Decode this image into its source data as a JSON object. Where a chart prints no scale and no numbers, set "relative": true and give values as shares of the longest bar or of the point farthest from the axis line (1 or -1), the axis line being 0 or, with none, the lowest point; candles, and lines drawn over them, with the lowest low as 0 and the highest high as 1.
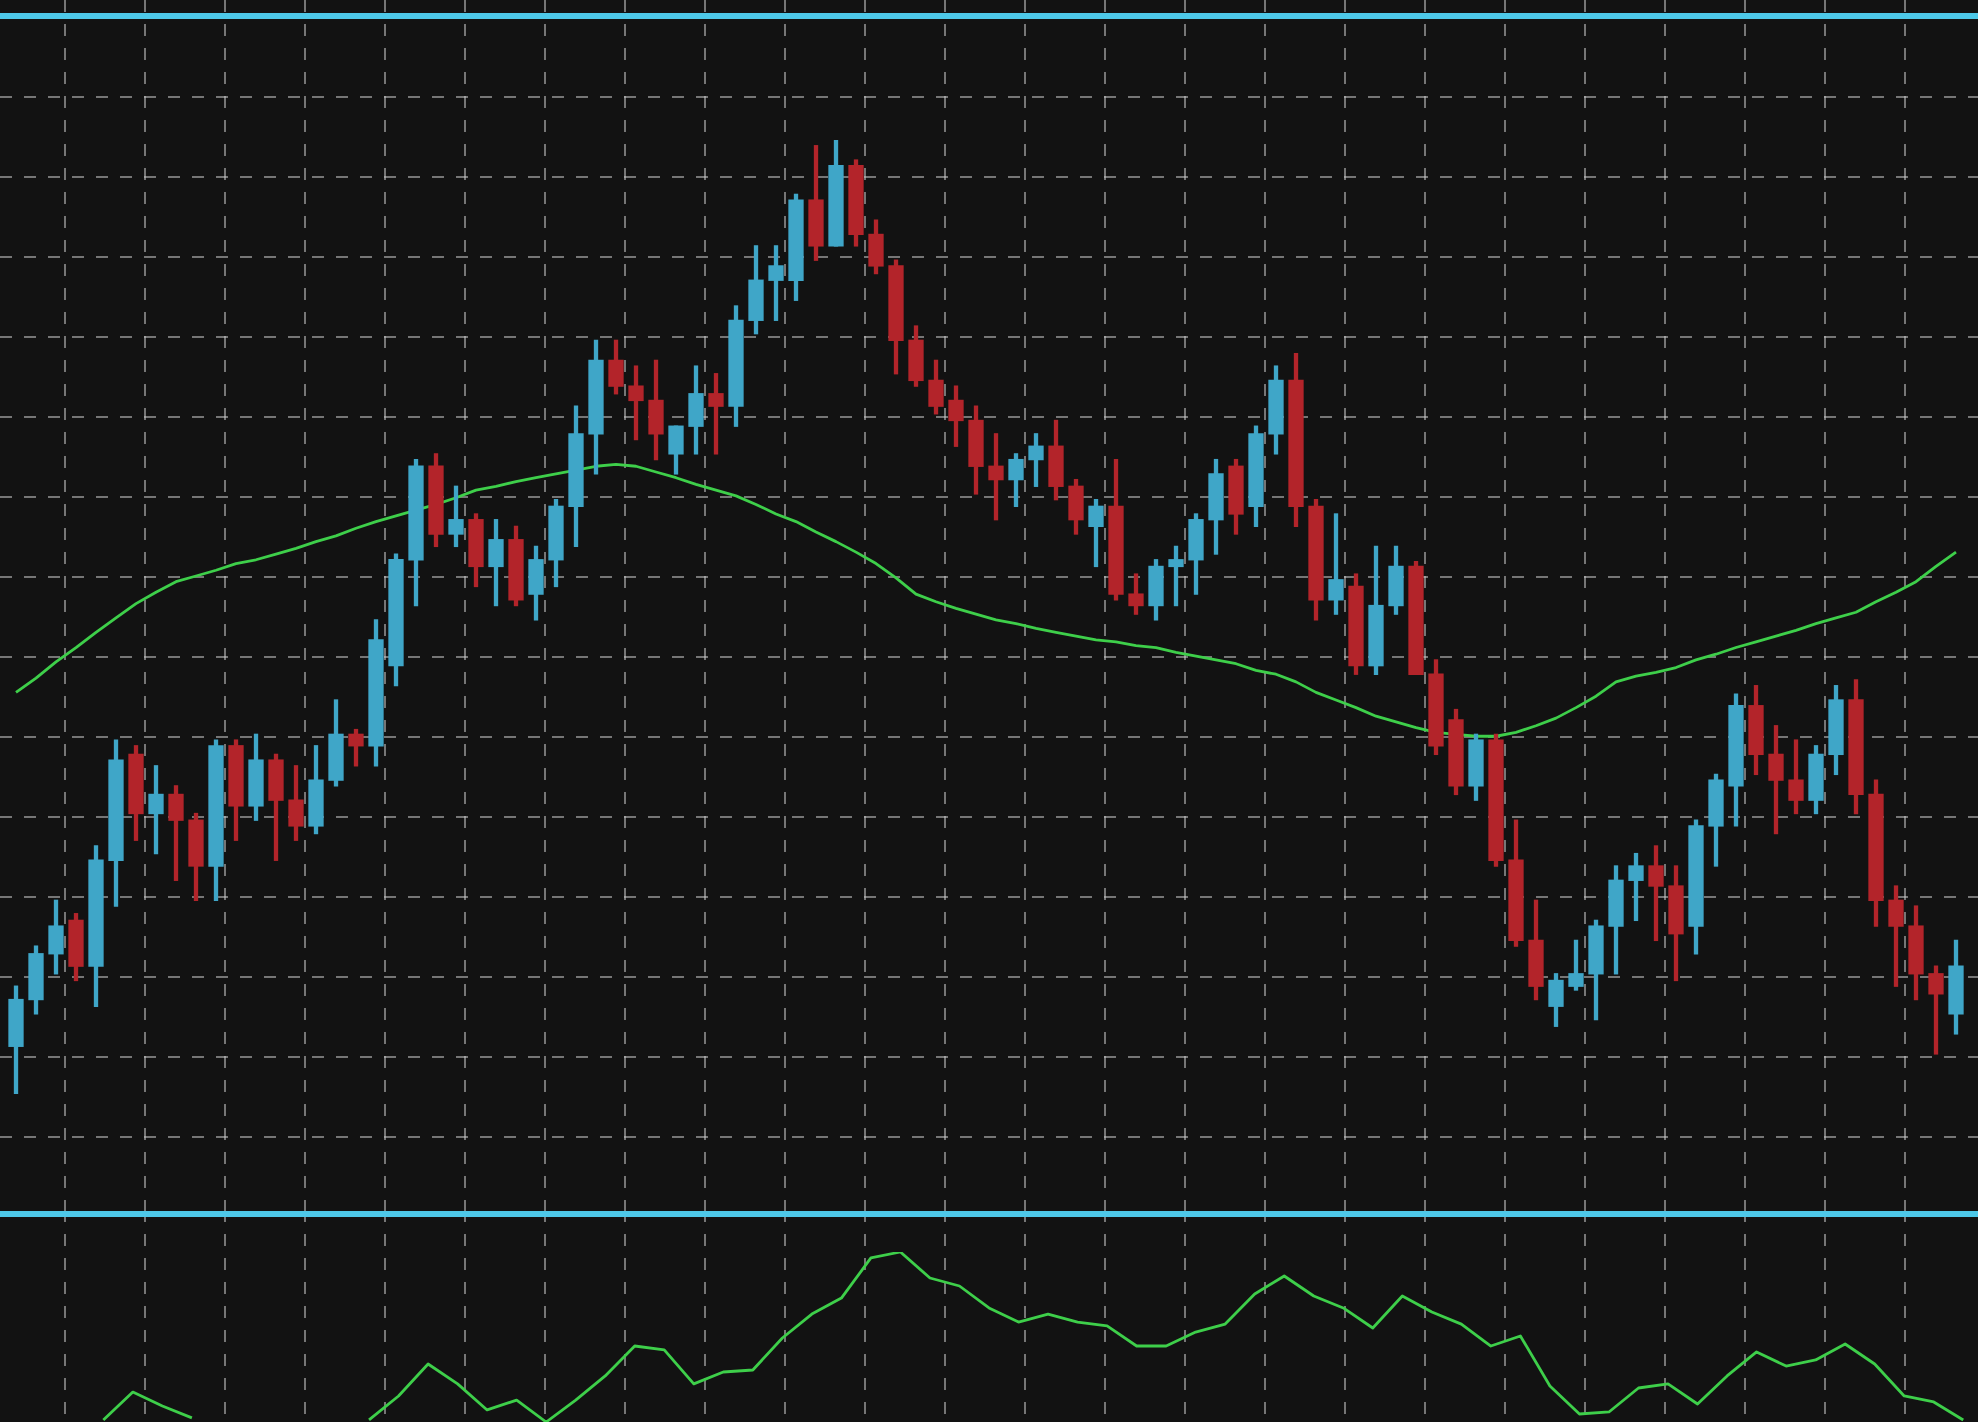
{
  "chart_data": [
    {
      "type": "candlestick",
      "relative": true,
      "grid": true,
      "categories": [
        null,
        null,
        null,
        null,
        null,
        null,
        null,
        null,
        null,
        null,
        null,
        null,
        null,
        null,
        null,
        null,
        null,
        null,
        null,
        null,
        null,
        null,
        null,
        null,
        null,
        null,
        null,
        null,
        null,
        null,
        null,
        null,
        null,
        null,
        null,
        null,
        null,
        null,
        null,
        null,
        null,
        null,
        null,
        null,
        null,
        null,
        null,
        null,
        null,
        null,
        null,
        null,
        null,
        null,
        null,
        null,
        null,
        null,
        null,
        null,
        null,
        null,
        null,
        null,
        null,
        null,
        null,
        null,
        null,
        null,
        null,
        null,
        null,
        null,
        null,
        null,
        null,
        null,
        null,
        null,
        null,
        null,
        null,
        null,
        null,
        null,
        null,
        null,
        null,
        null,
        null,
        null,
        null,
        null,
        null,
        null,
        null,
        null
      ],
      "ohlc": [
        [
          0.05,
          0.113,
          0,
          0.099
        ],
        [
          0.099,
          0.155,
          0.084,
          0.147
        ],
        [
          0.147,
          0.203,
          0.126,
          0.176
        ],
        [
          0.182,
          0.189,
          0.119,
          0.134
        ],
        [
          0.134,
          0.26,
          0.092,
          0.245
        ],
        [
          0.245,
          0.371,
          0.197,
          0.35
        ],
        [
          0.356,
          0.365,
          0.266,
          0.294
        ],
        [
          0.294,
          0.344,
          0.252,
          0.314
        ],
        [
          0.314,
          0.323,
          0.224,
          0.287
        ],
        [
          0.287,
          0.294,
          0.203,
          0.239
        ],
        [
          0.239,
          0.371,
          0.203,
          0.365
        ],
        [
          0.365,
          0.371,
          0.266,
          0.302
        ],
        [
          0.302,
          0.377,
          0.287,
          0.35
        ],
        [
          0.35,
          0.356,
          0.245,
          0.308
        ],
        [
          0.308,
          0.344,
          0.266,
          0.281
        ],
        [
          0.281,
          0.365,
          0.273,
          0.329
        ],
        [
          0.329,
          0.413,
          0.323,
          0.377
        ],
        [
          0.377,
          0.382,
          0.344,
          0.365
        ],
        [
          0.365,
          0.497,
          0.344,
          0.476
        ],
        [
          0.449,
          0.566,
          0.428,
          0.56
        ],
        [
          0.56,
          0.665,
          0.512,
          0.658
        ],
        [
          0.658,
          0.671,
          0.574,
          0.587
        ],
        [
          0.587,
          0.637,
          0.574,
          0.602
        ],
        [
          0.602,
          0.608,
          0.532,
          0.553
        ],
        [
          0.553,
          0.602,
          0.512,
          0.581
        ],
        [
          0.581,
          0.595,
          0.512,
          0.518
        ],
        [
          0.524,
          0.574,
          0.497,
          0.56
        ],
        [
          0.56,
          0.623,
          0.532,
          0.616
        ],
        [
          0.616,
          0.721,
          0.574,
          0.692
        ],
        [
          0.692,
          0.79,
          0.65,
          0.769
        ],
        [
          0.769,
          0.79,
          0.734,
          0.742
        ],
        [
          0.742,
          0.763,
          0.686,
          0.727
        ],
        [
          0.727,
          0.769,
          0.665,
          0.692
        ],
        [
          0.671,
          0.7,
          0.65,
          0.7
        ],
        [
          0.7,
          0.763,
          0.671,
          0.734
        ],
        [
          0.734,
          0.755,
          0.671,
          0.721
        ],
        [
          0.721,
          0.826,
          0.7,
          0.811
        ],
        [
          0.811,
          0.889,
          0.797,
          0.853
        ],
        [
          0.853,
          0.889,
          0.811,
          0.868
        ],
        [
          0.853,
          0.943,
          0.832,
          0.937
        ],
        [
          0.937,
          0.994,
          0.874,
          0.889
        ],
        [
          0.889,
          1,
          0.889,
          0.973
        ],
        [
          0.973,
          0.979,
          0.889,
          0.901
        ],
        [
          0.901,
          0.916,
          0.86,
          0.868
        ],
        [
          0.868,
          0.874,
          0.755,
          0.79
        ],
        [
          0.79,
          0.805,
          0.742,
          0.748
        ],
        [
          0.748,
          0.769,
          0.713,
          0.721
        ],
        [
          0.727,
          0.742,
          0.679,
          0.706
        ],
        [
          0.706,
          0.721,
          0.629,
          0.658
        ],
        [
          0.658,
          0.692,
          0.602,
          0.644
        ],
        [
          0.644,
          0.671,
          0.616,
          0.665
        ],
        [
          0.665,
          0.692,
          0.637,
          0.679
        ],
        [
          0.679,
          0.706,
          0.623,
          0.637
        ],
        [
          0.637,
          0.644,
          0.587,
          0.602
        ],
        [
          0.595,
          0.623,
          0.553,
          0.616
        ],
        [
          0.616,
          0.665,
          0.518,
          0.524
        ],
        [
          0.524,
          0.545,
          0.503,
          0.512
        ],
        [
          0.512,
          0.56,
          0.497,
          0.553
        ],
        [
          0.553,
          0.574,
          0.512,
          0.56
        ],
        [
          0.56,
          0.608,
          0.524,
          0.602
        ],
        [
          0.602,
          0.665,
          0.566,
          0.65
        ],
        [
          0.658,
          0.665,
          0.587,
          0.608
        ],
        [
          0.616,
          0.7,
          0.595,
          0.692
        ],
        [
          0.692,
          0.763,
          0.671,
          0.748
        ],
        [
          0.748,
          0.776,
          0.595,
          0.616
        ],
        [
          0.616,
          0.623,
          0.497,
          0.518
        ],
        [
          0.518,
          0.608,
          0.503,
          0.539
        ],
        [
          0.532,
          0.545,
          0.44,
          0.449
        ],
        [
          0.449,
          0.574,
          0.44,
          0.512
        ],
        [
          0.512,
          0.574,
          0.503,
          0.553
        ],
        [
          0.553,
          0.558,
          0.44,
          0.44
        ],
        [
          0.44,
          0.455,
          0.356,
          0.365
        ],
        [
          0.392,
          0.403,
          0.314,
          0.323
        ],
        [
          0.323,
          0.377,
          0.308,
          0.371
        ],
        [
          0.371,
          0.377,
          0.239,
          0.245
        ],
        [
          0.245,
          0.287,
          0.155,
          0.161
        ],
        [
          0.161,
          0.203,
          0.099,
          0.113
        ],
        [
          0.092,
          0.126,
          0.071,
          0.119
        ],
        [
          0.113,
          0.161,
          0.109,
          0.126
        ],
        [
          0.126,
          0.182,
          0.078,
          0.176
        ],
        [
          0.176,
          0.239,
          0.126,
          0.224
        ],
        [
          0.224,
          0.252,
          0.182,
          0.239
        ],
        [
          0.239,
          0.26,
          0.161,
          0.218
        ],
        [
          0.218,
          0.239,
          0.119,
          0.168
        ],
        [
          0.176,
          0.287,
          0.147,
          0.281
        ],
        [
          0.281,
          0.335,
          0.239,
          0.329
        ],
        [
          0.323,
          0.419,
          0.281,
          0.407
        ],
        [
          0.407,
          0.428,
          0.335,
          0.356
        ],
        [
          0.356,
          0.386,
          0.273,
          0.329
        ],
        [
          0.329,
          0.371,
          0.294,
          0.308
        ],
        [
          0.308,
          0.365,
          0.294,
          0.356
        ],
        [
          0.356,
          0.428,
          0.335,
          0.413
        ],
        [
          0.413,
          0.434,
          0.294,
          0.314
        ],
        [
          0.314,
          0.329,
          0.176,
          0.203
        ],
        [
          0.203,
          0.218,
          0.113,
          0.176
        ],
        [
          0.176,
          0.197,
          0.099,
          0.126
        ],
        [
          0.126,
          0.134,
          0.042,
          0.105
        ],
        [
          0.084,
          0.161,
          0.063,
          0.134
        ]
      ],
      "series": [
        {
          "type": "line",
          "color": "#3ecf4a",
          "values": [
            0.421,
            0.436,
            0.453,
            0.468,
            0.484,
            0.499,
            0.514,
            0.526,
            0.537,
            0.543,
            0.549,
            0.556,
            0.56,
            0.566,
            0.572,
            0.579,
            0.585,
            0.593,
            0.6,
            0.606,
            0.612,
            0.618,
            0.625,
            0.633,
            0.637,
            0.642,
            0.646,
            0.65,
            0.654,
            0.658,
            0.66,
            0.658,
            0.652,
            0.646,
            0.639,
            0.633,
            0.627,
            0.618,
            0.608,
            0.6,
            0.589,
            0.579,
            0.568,
            0.556,
            0.541,
            0.524,
            0.516,
            0.509,
            0.503,
            0.497,
            0.493,
            0.488,
            0.484,
            0.48,
            0.476,
            0.474,
            0.47,
            0.468,
            0.463,
            0.459,
            0.455,
            0.451,
            0.444,
            0.44,
            0.432,
            0.421,
            0.413,
            0.405,
            0.396,
            0.39,
            0.384,
            0.379,
            0.377,
            0.375,
            0.375,
            0.379,
            0.386,
            0.394,
            0.405,
            0.417,
            0.432,
            0.438,
            0.442,
            0.447,
            0.455,
            0.461,
            0.468,
            0.474,
            0.48,
            0.486,
            0.493,
            0.499,
            0.505,
            0.516,
            0.526,
            0.537,
            0.553,
            0.568
          ]
        }
      ]
    },
    {
      "type": "line",
      "relative": true,
      "grid": "x",
      "categories": [
        null,
        null,
        null,
        null,
        null,
        null,
        null,
        null,
        null,
        null,
        null,
        null,
        null,
        null,
        null,
        null,
        null,
        null,
        null,
        null,
        null,
        null,
        null,
        null,
        null,
        null,
        null,
        null,
        null,
        null,
        null,
        null,
        null,
        null,
        null,
        null,
        null,
        null,
        null,
        null,
        null,
        null,
        null,
        null,
        null,
        null,
        null,
        null,
        null,
        null,
        null,
        null,
        null,
        null,
        null,
        null,
        null,
        null,
        null,
        null,
        null,
        null,
        null,
        null,
        null,
        null,
        null
      ],
      "series": [
        {
          "color": "#3ecf4a",
          "values": [
            null,
            null,
            null,
            0.012,
            0.176,
            0.094,
            0.024,
            null,
            null,
            null,
            null,
            null,
            null,
            null,
            null,
            null,
            null,
            null,
            null,
            null,
            null,
            null,
            null,
            null,
            null,
            null,
            null,
            null,
            null,
            null,
            null,
            null,
            null,
            null,
            null,
            null,
            null,
            null,
            null,
            null,
            null,
            null,
            null,
            null,
            null,
            null,
            null,
            null,
            null,
            null,
            null,
            null,
            null,
            null,
            null,
            null,
            null,
            null,
            null,
            null,
            null,
            null,
            null,
            null,
            null,
            null,
            null
          ]
        },
        {
          "color": "#3ecf4a",
          "values": [
            null,
            null,
            null,
            null,
            null,
            null,
            null,
            null,
            null,
            null,
            null,
            null,
            0.012,
            0.153,
            0.341,
            0.224,
            0.071,
            0.129,
            0,
            0.129,
            0.271,
            0.447,
            0.424,
            0.224,
            0.294,
            0.306,
            0.494,
            0.635,
            0.729,
            0.965,
            1,
            0.847,
            0.8,
            0.671,
            0.588,
            0.635,
            0.588,
            0.565,
            0.447,
            0.447,
            0.529,
            0.576,
            0.753,
            0.859,
            0.741,
            0.671,
            0.553,
            0.741,
            0.647,
            0.576,
            0.447,
            0.506,
            0.212,
            0.047,
            0.059,
            0.2,
            0.224,
            0.106,
            0.271,
            0.412,
            0.329,
            0.365,
            0.459,
            0.341,
            0.153,
            0.118,
            0.012
          ]
        }
      ]
    }
  ]
}
